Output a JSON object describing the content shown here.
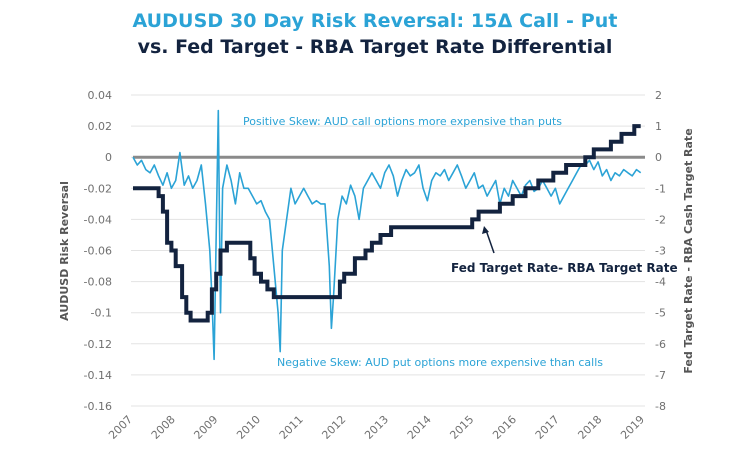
{
  "chart_data": {
    "type": "line",
    "title": "AUDUSD 30 Day Risk Reversal: 15Δ Call - Put",
    "subtitle": "vs. Fed Target - RBA Target Rate Differential",
    "xlabel": "",
    "ylabel": "AUDUSD Risk Reversal",
    "y2label": "Fed Target Rate - RBA Cash Target Rate",
    "xlim": [
      2007,
      2019
    ],
    "ylim": [
      -0.16,
      0.04
    ],
    "y2lim": [
      -8,
      2
    ],
    "x_ticks": [
      "2007",
      "2008",
      "2009",
      "2010",
      "2011",
      "2012",
      "2013",
      "2014",
      "2015",
      "2016",
      "2017",
      "2018",
      "2019"
    ],
    "y_ticks": [
      "0.04",
      "0.02",
      "0",
      "-0.02",
      "-0.04",
      "-0.06",
      "-0.08",
      "-0.1",
      "-0.12",
      "-0.14",
      "-0.16"
    ],
    "y2_ticks": [
      "2",
      "1",
      "0",
      "-1",
      "-2",
      "-3",
      "-4",
      "-5",
      "-6",
      "-7",
      "-8"
    ],
    "grid": true,
    "colors": {
      "risk_reversal": "#2ba3d6",
      "rate_diff": "#13233f",
      "zero_line": "#8a8a8a",
      "grid": "#e3e3e3"
    },
    "series": [
      {
        "name": "AUDUSD Risk Reversal",
        "axis": "left",
        "x": [
          2007.0,
          2007.1,
          2007.2,
          2007.3,
          2007.4,
          2007.5,
          2007.6,
          2007.7,
          2007.8,
          2007.9,
          2008.0,
          2008.1,
          2008.2,
          2008.3,
          2008.4,
          2008.5,
          2008.6,
          2008.7,
          2008.8,
          2008.85,
          2008.9,
          2008.95,
          2009.0,
          2009.05,
          2009.1,
          2009.2,
          2009.3,
          2009.4,
          2009.5,
          2009.6,
          2009.7,
          2009.8,
          2009.9,
          2010.0,
          2010.1,
          2010.2,
          2010.3,
          2010.4,
          2010.45,
          2010.5,
          2010.6,
          2010.7,
          2010.8,
          2010.9,
          2011.0,
          2011.1,
          2011.2,
          2011.3,
          2011.4,
          2011.5,
          2011.6,
          2011.65,
          2011.7,
          2011.8,
          2011.9,
          2012.0,
          2012.1,
          2012.2,
          2012.3,
          2012.4,
          2012.5,
          2012.6,
          2012.7,
          2012.8,
          2012.9,
          2013.0,
          2013.1,
          2013.2,
          2013.3,
          2013.4,
          2013.5,
          2013.6,
          2013.7,
          2013.8,
          2013.9,
          2014.0,
          2014.1,
          2014.2,
          2014.3,
          2014.4,
          2014.5,
          2014.6,
          2014.7,
          2014.8,
          2014.9,
          2015.0,
          2015.1,
          2015.2,
          2015.3,
          2015.4,
          2015.5,
          2015.6,
          2015.7,
          2015.8,
          2015.9,
          2016.0,
          2016.1,
          2016.2,
          2016.3,
          2016.4,
          2016.5,
          2016.6,
          2016.7,
          2016.8,
          2016.9,
          2017.0,
          2017.1,
          2017.2,
          2017.3,
          2017.4,
          2017.5,
          2017.6,
          2017.7,
          2017.8,
          2017.9,
          2018.0,
          2018.1,
          2018.2,
          2018.3,
          2018.4,
          2018.5,
          2018.6,
          2018.7,
          2018.8,
          2018.9
        ],
        "values": [
          0.0,
          -0.005,
          -0.002,
          -0.008,
          -0.01,
          -0.005,
          -0.012,
          -0.018,
          -0.01,
          -0.02,
          -0.015,
          0.003,
          -0.018,
          -0.012,
          -0.02,
          -0.015,
          -0.005,
          -0.03,
          -0.06,
          -0.09,
          -0.13,
          -0.05,
          0.03,
          -0.1,
          -0.02,
          -0.005,
          -0.015,
          -0.03,
          -0.01,
          -0.02,
          -0.02,
          -0.025,
          -0.03,
          -0.028,
          -0.035,
          -0.04,
          -0.07,
          -0.1,
          -0.125,
          -0.06,
          -0.04,
          -0.02,
          -0.03,
          -0.025,
          -0.02,
          -0.025,
          -0.03,
          -0.028,
          -0.03,
          -0.03,
          -0.07,
          -0.11,
          -0.09,
          -0.04,
          -0.025,
          -0.03,
          -0.018,
          -0.025,
          -0.04,
          -0.02,
          -0.015,
          -0.01,
          -0.015,
          -0.02,
          -0.01,
          -0.005,
          -0.012,
          -0.025,
          -0.015,
          -0.008,
          -0.012,
          -0.01,
          -0.005,
          -0.02,
          -0.028,
          -0.015,
          -0.01,
          -0.012,
          -0.008,
          -0.015,
          -0.01,
          -0.005,
          -0.012,
          -0.02,
          -0.015,
          -0.01,
          -0.02,
          -0.018,
          -0.025,
          -0.02,
          -0.015,
          -0.03,
          -0.02,
          -0.025,
          -0.015,
          -0.02,
          -0.025,
          -0.018,
          -0.015,
          -0.022,
          -0.02,
          -0.015,
          -0.02,
          -0.025,
          -0.02,
          -0.03,
          -0.025,
          -0.02,
          -0.015,
          -0.01,
          -0.005,
          -0.005,
          -0.002,
          -0.008,
          -0.003,
          -0.012,
          -0.008,
          -0.015,
          -0.01,
          -0.012,
          -0.008,
          -0.01,
          -0.012,
          -0.008,
          -0.01
        ]
      },
      {
        "name": "Fed Target Rate- RBA Target Rate",
        "axis": "right",
        "step": true,
        "x": [
          2007.0,
          2007.6,
          2007.7,
          2007.8,
          2007.9,
          2008.0,
          2008.15,
          2008.25,
          2008.35,
          2008.75,
          2008.85,
          2008.95,
          2009.05,
          2009.2,
          2009.75,
          2009.85,
          2010.0,
          2010.15,
          2010.3,
          2010.5,
          2011.85,
          2011.95,
          2012.2,
          2012.45,
          2012.6,
          2012.8,
          2013.05,
          2013.3,
          2013.45,
          2014.95,
          2015.1,
          2015.4,
          2015.6,
          2015.9,
          2016.2,
          2016.5,
          2016.85,
          2017.15,
          2017.35,
          2017.6,
          2017.8,
          2018.05,
          2018.2,
          2018.45,
          2018.6,
          2018.75,
          2018.9
        ],
        "values": [
          -1.0,
          -1.25,
          -1.75,
          -2.75,
          -3.0,
          -3.5,
          -4.5,
          -5.0,
          -5.25,
          -5.0,
          -4.25,
          -3.75,
          -3.0,
          -2.75,
          -3.25,
          -3.75,
          -4.0,
          -4.25,
          -4.5,
          -4.5,
          -4.0,
          -3.75,
          -3.25,
          -3.0,
          -2.75,
          -2.5,
          -2.25,
          -2.25,
          -2.25,
          -2.0,
          -1.75,
          -1.75,
          -1.5,
          -1.25,
          -1.0,
          -0.75,
          -0.5,
          -0.25,
          -0.25,
          0.0,
          0.25,
          0.25,
          0.5,
          0.75,
          0.75,
          1.0,
          1.0
        ]
      }
    ],
    "annotations": [
      {
        "text": "Positive Skew: AUD call options more expensive than puts",
        "position": "top-center"
      },
      {
        "text": "Negative Skew: AUD put options more expensive than calls",
        "position": "bottom-center"
      },
      {
        "text": "Fed Target Rate- RBA Target Rate",
        "position": "center-right",
        "arrow": true
      }
    ],
    "zero_line": {
      "axis": "right",
      "value": 0
    }
  }
}
